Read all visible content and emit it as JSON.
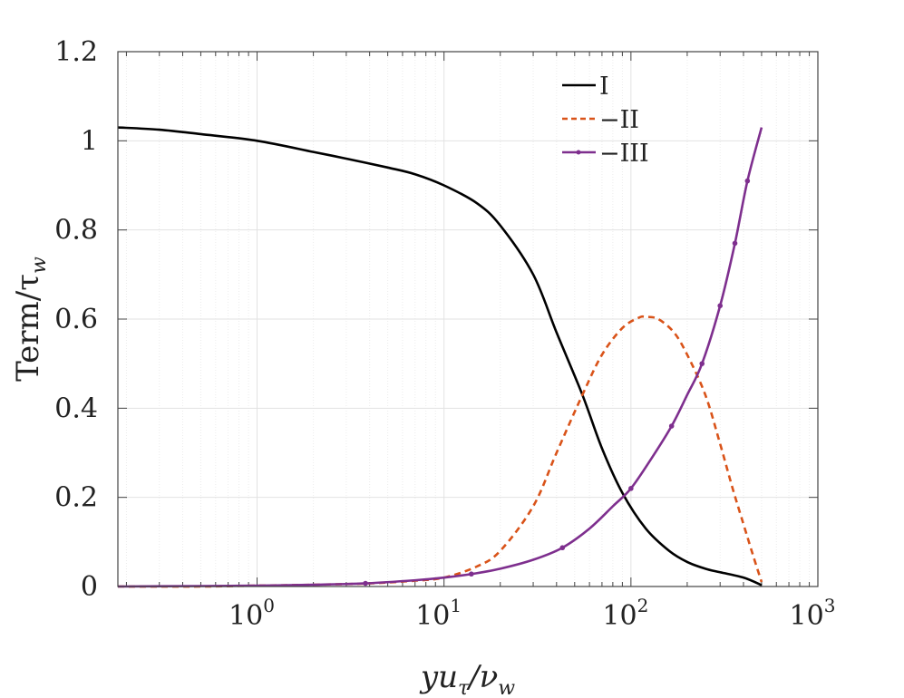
{
  "chart_data": {
    "type": "line",
    "x_scale": "log",
    "xlim": [
      0.18,
      1000
    ],
    "ylim": [
      0,
      1.2
    ],
    "xlabel": {
      "base": "yu",
      "sub": "τ",
      "mid": "/ν",
      "sub2": "w"
    },
    "ylabel": {
      "base": "Term/τ",
      "sub": "w"
    },
    "x_ticks": [
      {
        "value": 1,
        "base": "10",
        "exp": "0"
      },
      {
        "value": 10,
        "base": "10",
        "exp": "1"
      },
      {
        "value": 100,
        "base": "10",
        "exp": "2"
      },
      {
        "value": 1000,
        "base": "10",
        "exp": "3"
      }
    ],
    "y_ticks": [
      {
        "value": 0,
        "label": "0"
      },
      {
        "value": 0.2,
        "label": "0.2"
      },
      {
        "value": 0.4,
        "label": "0.4"
      },
      {
        "value": 0.6,
        "label": "0.6"
      },
      {
        "value": 0.8,
        "label": "0.8"
      },
      {
        "value": 1.0,
        "label": "1"
      },
      {
        "value": 1.2,
        "label": "1.2"
      }
    ],
    "grid": true,
    "legend_position": "top-right",
    "series": [
      {
        "name": "I",
        "color": "#000000",
        "style": "solid",
        "marker": "none",
        "x": [
          0.18,
          0.3,
          0.5,
          1,
          2,
          3,
          5,
          7,
          10,
          15,
          20,
          30,
          40,
          55,
          70,
          90,
          120,
          160,
          200,
          250,
          300,
          400,
          500
        ],
        "y": [
          1.03,
          1.025,
          1.015,
          1.0,
          0.975,
          0.96,
          0.94,
          0.925,
          0.9,
          0.86,
          0.81,
          0.7,
          0.57,
          0.43,
          0.31,
          0.21,
          0.13,
          0.08,
          0.055,
          0.04,
          0.032,
          0.02,
          0.003
        ]
      },
      {
        "name": "−II",
        "color": "#d95319",
        "style": "dashed",
        "marker": "none",
        "x": [
          0.18,
          0.5,
          1,
          2,
          4,
          7,
          10,
          15,
          20,
          30,
          40,
          55,
          70,
          90,
          110,
          120,
          140,
          170,
          200,
          250,
          300,
          350,
          400,
          450,
          500
        ],
        "y": [
          0.0,
          0.0,
          0.002,
          0.004,
          0.007,
          0.013,
          0.02,
          0.045,
          0.08,
          0.18,
          0.3,
          0.43,
          0.52,
          0.58,
          0.603,
          0.605,
          0.6,
          0.57,
          0.52,
          0.43,
          0.32,
          0.22,
          0.14,
          0.07,
          0.01
        ]
      },
      {
        "name": "−III",
        "color": "#7e2f8e",
        "style": "solid",
        "marker": "dot",
        "x": [
          0.18,
          0.5,
          1,
          2,
          3.8,
          7,
          10,
          14,
          20,
          30,
          43,
          60,
          80,
          100,
          130,
          165,
          200,
          240,
          300,
          360,
          420,
          500
        ],
        "y": [
          0.0,
          0.001,
          0.002,
          0.004,
          0.007,
          0.014,
          0.02,
          0.028,
          0.04,
          0.06,
          0.087,
          0.13,
          0.18,
          0.22,
          0.29,
          0.36,
          0.43,
          0.5,
          0.63,
          0.77,
          0.91,
          1.03
        ]
      }
    ],
    "markers": [
      {
        "x": 3.8,
        "y": 0.007
      },
      {
        "x": 14,
        "y": 0.028
      },
      {
        "x": 43,
        "y": 0.087
      },
      {
        "x": 100,
        "y": 0.22
      },
      {
        "x": 165,
        "y": 0.36
      },
      {
        "x": 240,
        "y": 0.5
      },
      {
        "x": 300,
        "y": 0.63
      },
      {
        "x": 360,
        "y": 0.77
      },
      {
        "x": 420,
        "y": 0.91
      }
    ]
  }
}
